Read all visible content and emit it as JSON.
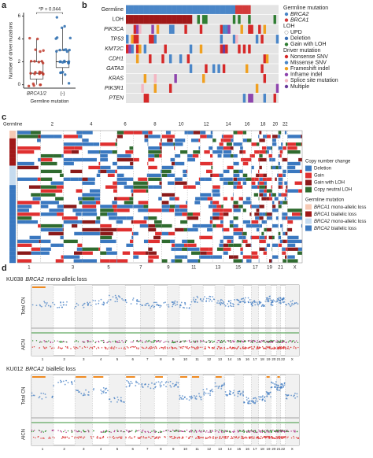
{
  "panel_labels": [
    "a",
    "b",
    "c",
    "d"
  ],
  "chart_data": {
    "type": "box",
    "ylabel": "Number of driver mutations",
    "xlabel": "Germline mutation",
    "categories": [
      "BRCA1/2",
      "(-)"
    ],
    "annotation": "*P = 0.044",
    "ylim": [
      -0.3,
      6.3
    ],
    "yticks": [
      0,
      2,
      4,
      6
    ],
    "boxes": [
      {
        "color": "#c0392b",
        "whisker_low": 0,
        "q1": 0.5,
        "median": 1,
        "q3": 2,
        "whisker_high": 4,
        "points": [
          0,
          0,
          0,
          0,
          0,
          1,
          1,
          1,
          1,
          1,
          1,
          1,
          1,
          2,
          2,
          2,
          2,
          2,
          3,
          3,
          3,
          4,
          4,
          1
        ]
      },
      {
        "color": "#2e6fb0",
        "whisker_low": 0,
        "q1": 1.5,
        "median": 2,
        "q3": 3,
        "whisker_high": 5,
        "points": [
          0,
          1,
          1,
          1,
          1,
          2,
          2,
          2,
          2,
          2,
          2,
          2,
          3,
          3,
          3,
          3,
          3,
          3,
          4,
          4,
          4,
          5,
          5,
          6,
          2,
          2
        ]
      }
    ]
  },
  "oncoprint": {
    "rows": [
      "Germline",
      "LOH",
      "PIK3CA",
      "TP53",
      "KMT2C",
      "CDH1",
      "GATA3",
      "KRAS",
      "PIK3R1",
      "PTEN"
    ],
    "legend": [
      {
        "title": "Germline mutation",
        "items": [
          {
            "label": "BRCA2",
            "color": "#4a86c8"
          },
          {
            "label": "BRCA1",
            "color": "#d33a3a"
          }
        ]
      },
      {
        "title": "LOH",
        "items": [
          {
            "label": "UPD",
            "color": "#ffffff"
          },
          {
            "label": "Deletion",
            "color": "#3a6fb5"
          },
          {
            "label": "Gain with LOH",
            "color": "#2f7d32"
          }
        ]
      },
      {
        "title": "Driver mutation",
        "items": [
          {
            "label": "Nonsense SNV",
            "color": "#d62828"
          },
          {
            "label": "Missense SNV",
            "color": "#4a86c8"
          },
          {
            "label": "Frameshift indel",
            "color": "#f0a020"
          },
          {
            "label": "Inframe indel",
            "color": "#8e44ad"
          },
          {
            "label": "Splice site mutation",
            "color": "#f4b6c2"
          },
          {
            "label": "Multiple",
            "color": "#6a3d9a"
          }
        ]
      }
    ]
  },
  "heatmap": {
    "germline_label": "Germline",
    "chromosomes_top": [
      "2",
      "4",
      "6",
      "8",
      "10",
      "12",
      "14",
      "16",
      "18",
      "20",
      "22"
    ],
    "chromosomes_bottom": [
      "1",
      "3",
      "5",
      "7",
      "9",
      "11",
      "13",
      "15",
      "17",
      "19",
      "21",
      "X"
    ],
    "legend": [
      {
        "title": "Copy number change",
        "items": [
          {
            "label": "Deletion",
            "color": "#3a78c0"
          },
          {
            "label": "Gain",
            "color": "#e03030"
          },
          {
            "label": "Gain with LOH",
            "color": "#8b1a1a"
          },
          {
            "label": "Copy neutral LOH",
            "color": "#2f6b2f"
          }
        ]
      },
      {
        "title": "Germline mutation",
        "items": [
          {
            "gene": "BRCA1",
            "label": "mono-allelic loss",
            "color": "#f6c9b4"
          },
          {
            "gene": "BRCA1",
            "label": "biallelic loss",
            "color": "#a01818"
          },
          {
            "gene": "BRCA2",
            "label": "mono-allelic loss",
            "color": "#c6dbef"
          },
          {
            "gene": "BRCA2",
            "label": "biallelic loss",
            "color": "#3a78c0"
          }
        ]
      }
    ]
  },
  "cn_plots": {
    "chromosomes": [
      "1",
      "2",
      "3",
      "4",
      "5",
      "6",
      "7",
      "8",
      "9",
      "10",
      "11",
      "12",
      "13",
      "14",
      "15",
      "16",
      "17",
      "18",
      "19",
      "20",
      "21",
      "22",
      "X"
    ],
    "ylabel_top": "Total CN",
    "ylabel_bottom": "AlCN",
    "plots": [
      {
        "sample": "KU038",
        "gene": "BRCA2",
        "status": "mono-allelic loss"
      },
      {
        "sample": "KU012",
        "gene": "BRCA2",
        "status": "biallelic loss"
      }
    ]
  }
}
